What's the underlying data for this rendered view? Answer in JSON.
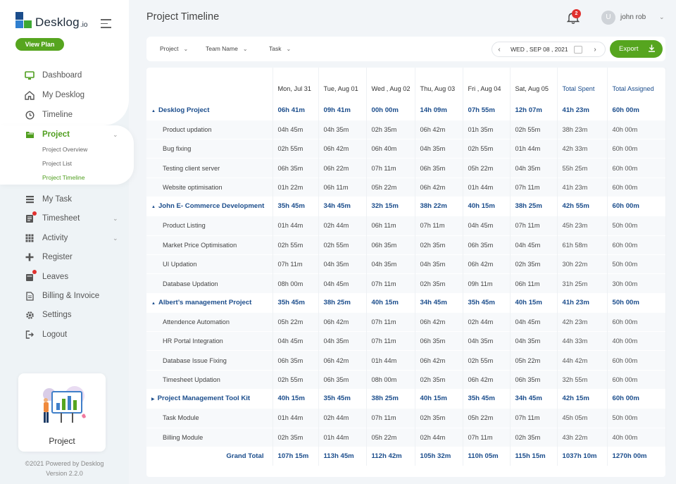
{
  "app": {
    "logo_main": "Desklog",
    "logo_sub": ".io",
    "view_plan": "View Plan"
  },
  "sidebar": {
    "items": [
      {
        "label": "Dashboard",
        "icon": "monitor-icon"
      },
      {
        "label": "My Desklog",
        "icon": "home-icon"
      },
      {
        "label": "Timeline",
        "icon": "clock-icon"
      },
      {
        "label": "Project",
        "icon": "folder-icon",
        "active": true
      },
      {
        "label": "My Task",
        "icon": "list-icon"
      },
      {
        "label": "Timesheet",
        "icon": "timesheet-icon"
      },
      {
        "label": "Activity",
        "icon": "grid-icon"
      },
      {
        "label": "Register",
        "icon": "plus-icon"
      },
      {
        "label": "Leaves",
        "icon": "calendar-icon"
      },
      {
        "label": "Billing & Invoice",
        "icon": "invoice-icon"
      },
      {
        "label": "Settings",
        "icon": "gear-icon"
      },
      {
        "label": "Logout",
        "icon": "logout-icon"
      }
    ],
    "subitems": [
      "Project Overview",
      "Project List",
      "Project Timeline"
    ],
    "promo_label": "Project",
    "footer_line1": "©2021 Powered by Desklog",
    "footer_line2": "Version 2.2.0"
  },
  "header": {
    "title": "Project Timeline",
    "notification_count": "2",
    "avatar_initial": "U",
    "user_name": "john rob"
  },
  "filters": {
    "project": "Project",
    "team": "Team Name",
    "task": "Task",
    "date": "WED , SEP 08 , 2021",
    "export": "Export"
  },
  "table": {
    "columns": [
      "Mon, Jul 31",
      "Tue, Aug 01",
      "Wed , Aug 02",
      "Thu, Aug 03",
      "Fri , Aug 04",
      "Sat, Aug 05",
      "Total Spent",
      "Total Assigned"
    ],
    "rows": [
      {
        "type": "project",
        "name": "Desklog Project",
        "cells": [
          "06h 41m",
          "09h 41m",
          "00h 00m",
          "14h 09m",
          "07h 55m",
          "12h 07m",
          "41h 23m",
          "60h 00m"
        ]
      },
      {
        "type": "task",
        "name": "Product updation",
        "cells": [
          "04h 45m",
          "04h 35m",
          "02h 35m",
          "06h 42m",
          "01h 35m",
          "02h 55m",
          "38h 23m",
          "40h 00m"
        ]
      },
      {
        "type": "task",
        "name": "Bug fixing",
        "cells": [
          "02h 55m",
          "06h 42m",
          "06h 40m",
          "04h 35m",
          "02h 55m",
          "01h 44m",
          "42h 33m",
          "60h 00m"
        ]
      },
      {
        "type": "task",
        "name": "Testing client server",
        "cells": [
          "06h 35m",
          "06h 22m",
          "07h 11m",
          "06h 35m",
          "05h 22m",
          "04h 35m",
          "55h 25m",
          "60h 00m"
        ]
      },
      {
        "type": "task",
        "name": "Website optimisation",
        "cells": [
          "01h 22m",
          "06h 11m",
          "05h 22m",
          "06h 42m",
          "01h 44m",
          "07h 11m",
          "41h 23m",
          "60h 00m"
        ]
      },
      {
        "type": "project",
        "name": "John E- Commerce Development",
        "cells": [
          "35h 45m",
          "34h 45m",
          "32h 15m",
          "38h 22m",
          "40h 15m",
          "38h 25m",
          "42h 55m",
          "60h 00m"
        ]
      },
      {
        "type": "task",
        "name": "Product Listing",
        "cells": [
          "01h 44m",
          "02h 44m",
          "06h 11m",
          "07h 11m",
          "04h 45m",
          "07h 11m",
          "45h 23m",
          "50h 00m"
        ]
      },
      {
        "type": "task",
        "name": "Market Price Optimisation",
        "cells": [
          "02h 55m",
          "02h 55m",
          "06h 35m",
          "02h 35m",
          "06h 35m",
          "04h 45m",
          "61h 58m",
          "60h 00m"
        ]
      },
      {
        "type": "task",
        "name": "UI Updation",
        "cells": [
          "07h 11m",
          "04h 35m",
          "04h 35m",
          "04h 35m",
          "06h 42m",
          "02h 35m",
          "30h 22m",
          "50h 00m"
        ]
      },
      {
        "type": "task",
        "name": "Database Updation",
        "cells": [
          "08h 00m",
          "04h 45m",
          "07h 11m",
          "02h 35m",
          "09h 11m",
          "06h 11m",
          "31h 25m",
          "30h 00m"
        ]
      },
      {
        "type": "project",
        "name": "Albert’s management Project",
        "cells": [
          "35h 45m",
          "38h 25m",
          "40h 15m",
          "34h 45m",
          "35h 45m",
          "40h 15m",
          "41h 23m",
          "50h 00m"
        ]
      },
      {
        "type": "task",
        "name": "Attendence Automation",
        "cells": [
          "05h 22m",
          "06h 42m",
          "07h 11m",
          "06h 42m",
          "02h 44m",
          "04h 45m",
          "42h 23m",
          "60h 00m"
        ]
      },
      {
        "type": "task",
        "name": "HR Portal Integration",
        "cells": [
          "04h 45m",
          "04h 35m",
          "07h 11m",
          "06h 35m",
          "04h 35m",
          "04h 35m",
          "44h 33m",
          "40h 00m"
        ]
      },
      {
        "type": "task",
        "name": "Database  Issue Fixing",
        "cells": [
          "06h 35m",
          "06h 42m",
          "01h 44m",
          "06h 42m",
          "02h 55m",
          "05h 22m",
          "44h 42m",
          "60h 00m"
        ]
      },
      {
        "type": "task",
        "name": "Timesheet Updation",
        "cells": [
          "02h 55m",
          "06h 35m",
          "08h 00m",
          "02h 35m",
          "06h 42m",
          "06h 35m",
          "32h 55m",
          "60h 00m"
        ]
      },
      {
        "type": "project",
        "name": "Project Management Tool Kit",
        "cells": [
          "40h 15m",
          "35h 45m",
          "38h 25m",
          "40h 15m",
          "35h 45m",
          "34h 45m",
          "42h 15m",
          "60h 00m"
        ]
      },
      {
        "type": "task",
        "name": "Task Module",
        "cells": [
          "01h 44m",
          "02h 44m",
          "07h 11m",
          "02h 35m",
          "05h 22m",
          "07h 11m",
          "45h 05m",
          "50h 00m"
        ]
      },
      {
        "type": "task",
        "name": "Billing Module",
        "cells": [
          "02h 35m",
          "01h 44m",
          "05h 22m",
          "02h 44m",
          "07h 11m",
          "02h 35m",
          "43h 22m",
          "40h 00m"
        ]
      }
    ],
    "grand_total_label": "Grand Total",
    "grand_total": [
      "107h 15m",
      "113h 45m",
      "112h 42m",
      "105h 32m",
      "110h 05m",
      "115h 15m",
      "1037h 10m",
      "1270h 00m"
    ]
  },
  "colors": {
    "accent_green": "#56a51f",
    "brand_blue": "#1b4d8c",
    "badge_red": "#e0312f"
  }
}
